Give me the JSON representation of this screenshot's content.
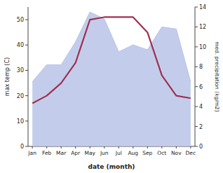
{
  "chart_data": {
    "type": "line",
    "xlabel": "date (month)",
    "ylabel": "max temp (C)",
    "y2label": "med. precipitation (kg/m2)",
    "categories": [
      "Jan",
      "Feb",
      "Mar",
      "Apr",
      "May",
      "Jun",
      "Jul",
      "Aug",
      "Sep",
      "Oct",
      "Nov",
      "Dec"
    ],
    "series": [
      {
        "type": "line",
        "color": "#a03050",
        "values": [
          17,
          20,
          25,
          33,
          50,
          51,
          51,
          51,
          45,
          28,
          20,
          19
        ]
      },
      {
        "type": "area",
        "color": "#b8c4e8",
        "axis": "y2",
        "values": [
          6.5,
          8.2,
          8.2,
          10.5,
          13.5,
          12.8,
          9.5,
          10.2,
          9.7,
          12.0,
          11.8,
          6.5
        ]
      }
    ],
    "ylim": [
      0,
      55
    ],
    "yticks": [
      0,
      10,
      20,
      30,
      40,
      50
    ],
    "y2lim": [
      0,
      14
    ],
    "y2ticks": [
      0,
      2,
      4,
      6,
      8,
      10,
      12,
      14
    ],
    "grid": false
  }
}
